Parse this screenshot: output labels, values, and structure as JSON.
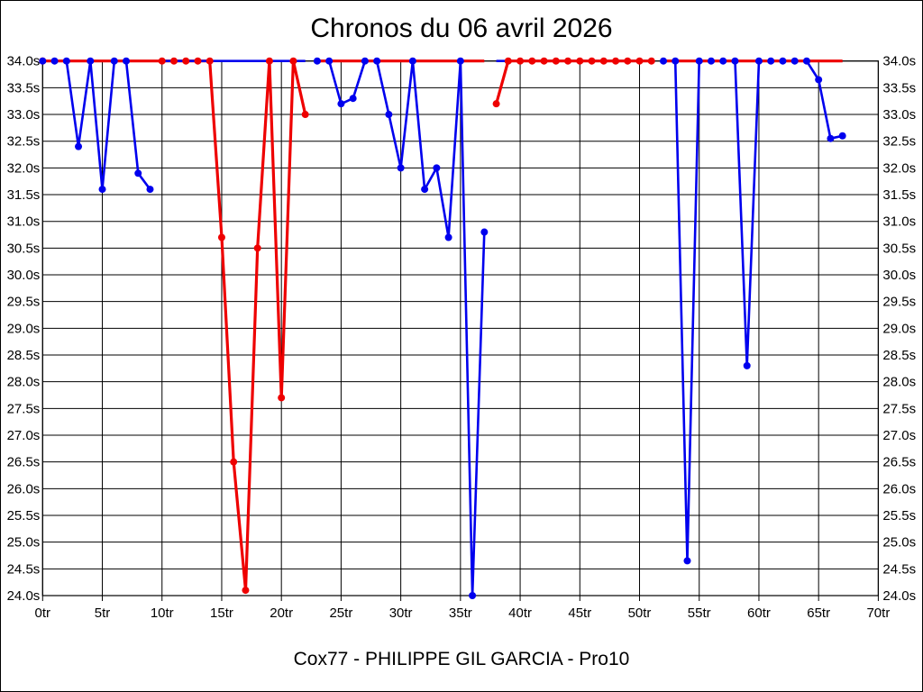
{
  "title": "Chronos du 06 avril 2026",
  "footer": "Cox77 - PHILIPPE GIL GARCIA - Pro10",
  "chart_data": {
    "type": "line",
    "title": "Chronos du 06 avril 2026",
    "subtitle": "Cox77 - PHILIPPE GIL GARCIA - Pro10",
    "x_unit": "tr",
    "y_unit": "s",
    "xlim": [
      0,
      70
    ],
    "ylim": [
      24.0,
      34.0
    ],
    "y_step": 0.5,
    "x_step": 5,
    "grid": true,
    "x_ticks": [
      "0tr",
      "5tr",
      "10tr",
      "15tr",
      "20tr",
      "25tr",
      "30tr",
      "35tr",
      "40tr",
      "45tr",
      "50tr",
      "55tr",
      "60tr",
      "65tr",
      "70tr"
    ],
    "y_ticks": [
      "34.0s",
      "33.5s",
      "33.0s",
      "32.5s",
      "32.0s",
      "31.5s",
      "31.0s",
      "30.5s",
      "30.0s",
      "29.5s",
      "29.0s",
      "28.5s",
      "28.0s",
      "27.5s",
      "27.0s",
      "26.5s",
      "26.0s",
      "25.5s",
      "25.0s",
      "24.5s",
      "24.0s"
    ],
    "grid_color": "#000000",
    "series": [
      {
        "name": "blue-run",
        "color": "#0000ee",
        "line_width": 2.6,
        "marker_radius": 4,
        "extra_markers": [],
        "segments": [
          {
            "markers": true,
            "under": false,
            "points": [
              [
                0,
                34
              ],
              [
                1,
                34
              ],
              [
                2,
                34
              ],
              [
                3,
                32.4
              ],
              [
                4,
                34
              ],
              [
                5,
                31.6
              ],
              [
                6,
                34
              ],
              [
                7,
                34
              ],
              [
                8,
                31.9
              ],
              [
                9,
                31.6
              ]
            ]
          },
          {
            "markers": false,
            "under": false,
            "points": [
              [
                10,
                34
              ],
              [
                22,
                34
              ]
            ]
          },
          {
            "markers": true,
            "under": false,
            "points": [
              [
                23,
                34
              ],
              [
                24,
                34
              ],
              [
                25,
                33.2
              ],
              [
                26,
                33.3
              ],
              [
                27,
                34
              ],
              [
                28,
                34
              ],
              [
                29,
                33.0
              ],
              [
                30,
                32.0
              ],
              [
                31,
                34
              ],
              [
                32,
                31.6
              ],
              [
                33,
                32.0
              ],
              [
                34,
                30.7
              ],
              [
                35,
                34
              ],
              [
                36,
                24.0
              ],
              [
                37,
                30.8
              ]
            ]
          },
          {
            "markers": false,
            "under": false,
            "points": [
              [
                38,
                34
              ],
              [
                51,
                34
              ]
            ]
          },
          {
            "markers": true,
            "under": false,
            "points": [
              [
                52,
                34
              ],
              [
                53,
                34
              ],
              [
                54,
                24.65
              ],
              [
                55,
                34
              ],
              [
                56,
                34
              ],
              [
                57,
                34
              ],
              [
                58,
                34
              ],
              [
                59,
                28.3
              ],
              [
                60,
                34
              ],
              [
                61,
                34
              ],
              [
                62,
                34
              ],
              [
                63,
                34
              ],
              [
                64,
                34
              ],
              [
                65,
                33.65
              ],
              [
                66,
                32.55
              ],
              [
                67,
                32.6
              ]
            ]
          }
        ]
      },
      {
        "name": "red-run",
        "color": "#ee0000",
        "line_width": 3.2,
        "marker_radius": 4,
        "extra_markers": [
          [
            0,
            34
          ]
        ],
        "segments": [
          {
            "markers": false,
            "under": false,
            "points": [
              [
                0,
                34
              ],
              [
                10,
                34
              ]
            ]
          },
          {
            "markers": true,
            "under": true,
            "points": [
              [
                10,
                34
              ],
              [
                11,
                34
              ],
              [
                12,
                34
              ],
              [
                13,
                34
              ],
              [
                14,
                34
              ],
              [
                15,
                30.7
              ],
              [
                16,
                26.5
              ],
              [
                17,
                24.1
              ],
              [
                18,
                30.5
              ],
              [
                19,
                34
              ],
              [
                20,
                27.7
              ],
              [
                21,
                34
              ],
              [
                22,
                33.0
              ]
            ]
          },
          {
            "markers": false,
            "under": false,
            "points": [
              [
                23,
                34
              ],
              [
                37,
                34
              ]
            ]
          },
          {
            "markers": true,
            "under": false,
            "points": [
              [
                38,
                33.2
              ],
              [
                39,
                34
              ],
              [
                40,
                34
              ],
              [
                41,
                34
              ],
              [
                42,
                34
              ],
              [
                43,
                34
              ],
              [
                44,
                34
              ],
              [
                45,
                34
              ],
              [
                46,
                34
              ],
              [
                47,
                34
              ],
              [
                48,
                34
              ],
              [
                49,
                34
              ],
              [
                50,
                34
              ],
              [
                51,
                34
              ]
            ]
          },
          {
            "markers": false,
            "under": false,
            "points": [
              [
                52,
                34
              ],
              [
                67,
                34
              ]
            ]
          }
        ]
      }
    ]
  }
}
